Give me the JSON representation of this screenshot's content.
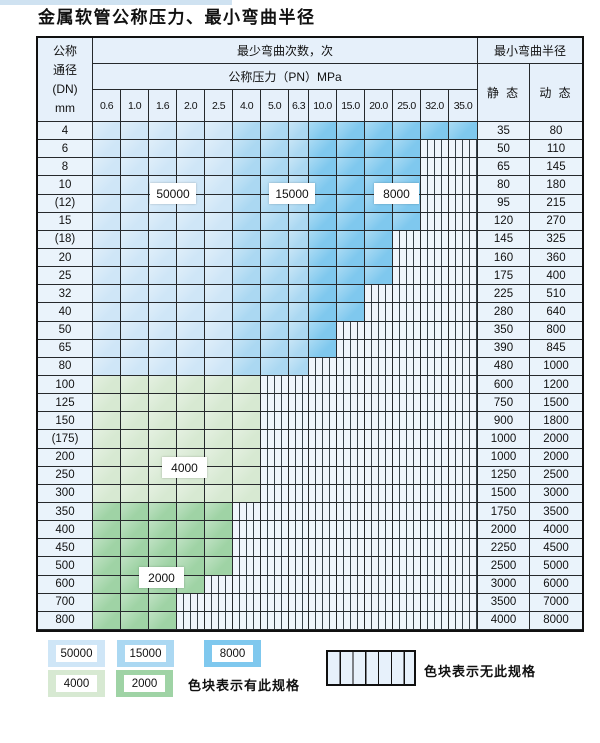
{
  "title": "金属软管公称压力、最小弯曲半径",
  "header": {
    "dn_lines": [
      "公称",
      "通径",
      "(DN)",
      "mm"
    ],
    "bend_cycles_label": "最少弯曲次数，次",
    "pressure_label": "公称压力（PN）MPa",
    "radius_label": "最小弯曲半径",
    "static_label": "静 态",
    "dynamic_label": "动 态"
  },
  "chart_data": {
    "type": "heatmap",
    "title": "金属软管公称压力、最小弯曲半径",
    "x_label": "公称压力（PN）MPa",
    "x_ticks": [
      "0.6",
      "1.0",
      "1.6",
      "2.0",
      "2.5",
      "4.0",
      "5.0",
      "6.3",
      "10.0",
      "15.0",
      "20.0",
      "25.0",
      "32.0",
      "35.0"
    ],
    "y_label": "公称通径 (DN) mm",
    "value_columns": [
      "静 态",
      "动 态"
    ],
    "rows": [
      {
        "dn": "4",
        "pn_available_max": "35.0",
        "static": "35",
        "dynamic": "80"
      },
      {
        "dn": "6",
        "pn_available_max": "25.0",
        "static": "50",
        "dynamic": "110"
      },
      {
        "dn": "8",
        "pn_available_max": "25.0",
        "static": "65",
        "dynamic": "145"
      },
      {
        "dn": "10",
        "pn_available_max": "25.0",
        "static": "80",
        "dynamic": "180"
      },
      {
        "dn": "(12)",
        "pn_available_max": "25.0",
        "static": "95",
        "dynamic": "215"
      },
      {
        "dn": "15",
        "pn_available_max": "25.0",
        "static": "120",
        "dynamic": "270"
      },
      {
        "dn": "(18)",
        "pn_available_max": "20.0",
        "static": "145",
        "dynamic": "325"
      },
      {
        "dn": "20",
        "pn_available_max": "20.0",
        "static": "160",
        "dynamic": "360"
      },
      {
        "dn": "25",
        "pn_available_max": "20.0",
        "static": "175",
        "dynamic": "400"
      },
      {
        "dn": "32",
        "pn_available_max": "15.0",
        "static": "225",
        "dynamic": "510"
      },
      {
        "dn": "40",
        "pn_available_max": "15.0",
        "static": "280",
        "dynamic": "640"
      },
      {
        "dn": "50",
        "pn_available_max": "10.0",
        "static": "350",
        "dynamic": "800"
      },
      {
        "dn": "65",
        "pn_available_max": "10.0",
        "static": "390",
        "dynamic": "845"
      },
      {
        "dn": "80",
        "pn_available_max": "6.3",
        "static": "480",
        "dynamic": "1000"
      },
      {
        "dn": "100",
        "pn_available_max": "4.0",
        "static": "600",
        "dynamic": "1200"
      },
      {
        "dn": "125",
        "pn_available_max": "4.0",
        "static": "750",
        "dynamic": "1500"
      },
      {
        "dn": "150",
        "pn_available_max": "4.0",
        "static": "900",
        "dynamic": "1800"
      },
      {
        "dn": "(175)",
        "pn_available_max": "4.0",
        "static": "1000",
        "dynamic": "2000"
      },
      {
        "dn": "200",
        "pn_available_max": "4.0",
        "static": "1000",
        "dynamic": "2000"
      },
      {
        "dn": "250",
        "pn_available_max": "4.0",
        "static": "1250",
        "dynamic": "2500"
      },
      {
        "dn": "300",
        "pn_available_max": "4.0",
        "static": "1500",
        "dynamic": "3000"
      },
      {
        "dn": "350",
        "pn_available_max": "2.5",
        "static": "1750",
        "dynamic": "3500"
      },
      {
        "dn": "400",
        "pn_available_max": "2.5",
        "static": "2000",
        "dynamic": "4000"
      },
      {
        "dn": "450",
        "pn_available_max": "2.5",
        "static": "2250",
        "dynamic": "4500"
      },
      {
        "dn": "500",
        "pn_available_max": "2.5",
        "static": "2500",
        "dynamic": "5000"
      },
      {
        "dn": "600",
        "pn_available_max": "2.0",
        "static": "3000",
        "dynamic": "6000"
      },
      {
        "dn": "700",
        "pn_available_max": "1.6",
        "static": "3500",
        "dynamic": "7000"
      },
      {
        "dn": "800",
        "pn_available_max": "1.6",
        "static": "4000",
        "dynamic": "8000"
      }
    ],
    "zones": [
      {
        "label": "50000",
        "pn_columns": "0.6–2.5",
        "dn_rows": "4–80"
      },
      {
        "label": "15000",
        "pn_columns": "4.0–6.3",
        "dn_rows": "4–80"
      },
      {
        "label": "8000",
        "pn_columns": "10.0–35.0",
        "dn_rows": "4–65"
      },
      {
        "label": "4000",
        "pn_columns": "0.6–4.0",
        "dn_rows": "100–300"
      },
      {
        "label": "2000",
        "pn_columns": "0.6–2.5",
        "dn_rows": "350–800"
      }
    ]
  },
  "colors": {
    "50000": "#cfe6f7",
    "15000": "#abd8f2",
    "8000": "#7fc8ee",
    "4000": "#d7e9d2",
    "2000": "#9fd3a5",
    "striped_bg": "#eff5fb",
    "header_bg": "#e6f0fa",
    "row_label_bg": "#eaf3fb"
  },
  "legend": {
    "entries": [
      "50000",
      "15000",
      "8000",
      "4000",
      "2000"
    ],
    "available_note": "色块表示有此规格",
    "unavailable_note": "色块表示无此规格"
  }
}
